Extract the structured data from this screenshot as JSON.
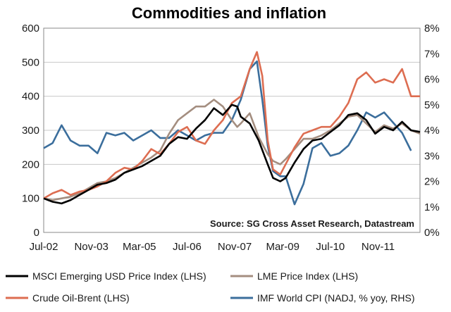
{
  "chart_data": {
    "type": "line",
    "title": "Commodities and inflation",
    "source_note": "Source: SG Cross Asset Research, Datastream",
    "left_axis": {
      "min": 0,
      "max": 600,
      "step": 100,
      "ticks": [
        "0",
        "100",
        "200",
        "300",
        "400",
        "500",
        "600"
      ]
    },
    "right_axis": {
      "min": 0,
      "max": 8,
      "step": 1,
      "ticks": [
        "0%",
        "1%",
        "2%",
        "3%",
        "4%",
        "5%",
        "6%",
        "7%",
        "8%"
      ]
    },
    "x_axis": {
      "start": 2002.5,
      "end": 2013.0,
      "ticks": [
        {
          "label": "Jul-02",
          "x": 2002.5
        },
        {
          "label": "Nov-03",
          "x": 2003.83
        },
        {
          "label": "Mar-05",
          "x": 2005.17
        },
        {
          "label": "Jul-06",
          "x": 2006.5
        },
        {
          "label": "Nov-07",
          "x": 2007.83
        },
        {
          "label": "Mar-09",
          "x": 2009.17
        },
        {
          "label": "Jul-10",
          "x": 2010.5
        },
        {
          "label": "Nov-11",
          "x": 2011.83
        }
      ]
    },
    "series": [
      {
        "name": "MSCI Emerging USD Price Index (LHS)",
        "axis": "left",
        "color": "#000000",
        "x": [
          2002.5,
          2002.75,
          2003.0,
          2003.25,
          2003.5,
          2003.75,
          2004.0,
          2004.25,
          2004.5,
          2004.75,
          2005.0,
          2005.25,
          2005.5,
          2005.75,
          2006.0,
          2006.25,
          2006.5,
          2006.75,
          2007.0,
          2007.25,
          2007.5,
          2007.75,
          2007.9,
          2008.0,
          2008.25,
          2008.5,
          2008.75,
          2008.9,
          2009.1,
          2009.25,
          2009.5,
          2009.75,
          2010.0,
          2010.25,
          2010.5,
          2010.75,
          2011.0,
          2011.25,
          2011.5,
          2011.75,
          2012.0,
          2012.25,
          2012.5,
          2012.75,
          2013.0
        ],
        "y": [
          100,
          90,
          85,
          95,
          110,
          125,
          140,
          145,
          155,
          175,
          185,
          195,
          210,
          225,
          260,
          280,
          275,
          305,
          330,
          365,
          345,
          375,
          370,
          340,
          320,
          270,
          200,
          160,
          150,
          160,
          205,
          245,
          270,
          275,
          295,
          315,
          345,
          350,
          330,
          290,
          310,
          300,
          325,
          300,
          295
        ]
      },
      {
        "name": "LME Price Index (LHS)",
        "axis": "left",
        "color": "#a48e80",
        "x": [
          2002.5,
          2002.75,
          2003.0,
          2003.25,
          2003.5,
          2003.75,
          2004.0,
          2004.25,
          2004.5,
          2004.75,
          2005.0,
          2005.25,
          2005.5,
          2005.75,
          2006.0,
          2006.25,
          2006.5,
          2006.75,
          2007.0,
          2007.25,
          2007.5,
          2007.75,
          2007.9,
          2008.0,
          2008.25,
          2008.5,
          2008.75,
          2008.9,
          2009.1,
          2009.25,
          2009.5,
          2009.75,
          2010.0,
          2010.25,
          2010.5,
          2010.75,
          2011.0,
          2011.25,
          2011.5,
          2011.75,
          2012.0,
          2012.25,
          2012.5,
          2012.75,
          2013.0
        ],
        "y": [
          100,
          95,
          100,
          105,
          115,
          130,
          145,
          150,
          160,
          175,
          190,
          205,
          220,
          240,
          290,
          330,
          350,
          370,
          370,
          390,
          370,
          330,
          310,
          320,
          350,
          280,
          230,
          210,
          200,
          215,
          245,
          275,
          275,
          285,
          300,
          320,
          340,
          345,
          320,
          295,
          315,
          305,
          320,
          300,
          290
        ]
      },
      {
        "name": "Crude Oil-Brent (LHS)",
        "axis": "left",
        "color": "#dd6d51",
        "x": [
          2002.5,
          2002.75,
          2003.0,
          2003.25,
          2003.5,
          2003.75,
          2004.0,
          2004.25,
          2004.5,
          2004.75,
          2005.0,
          2005.25,
          2005.5,
          2005.75,
          2006.0,
          2006.25,
          2006.5,
          2006.75,
          2007.0,
          2007.25,
          2007.5,
          2007.75,
          2008.0,
          2008.25,
          2008.45,
          2008.6,
          2008.75,
          2008.9,
          2009.1,
          2009.25,
          2009.5,
          2009.75,
          2010.0,
          2010.25,
          2010.5,
          2010.75,
          2011.0,
          2011.25,
          2011.5,
          2011.75,
          2012.0,
          2012.25,
          2012.5,
          2012.75,
          2013.0
        ],
        "y": [
          100,
          115,
          125,
          110,
          120,
          125,
          135,
          150,
          175,
          190,
          185,
          210,
          245,
          230,
          260,
          295,
          310,
          270,
          260,
          300,
          330,
          380,
          400,
          480,
          530,
          460,
          270,
          185,
          170,
          200,
          250,
          290,
          300,
          310,
          310,
          340,
          380,
          450,
          470,
          440,
          450,
          440,
          480,
          400,
          400
        ]
      },
      {
        "name": "IMF World CPI (NADJ, % yoy, RHS)",
        "axis": "right",
        "color": "#3b6e9c",
        "x": [
          2002.5,
          2002.75,
          2003.0,
          2003.25,
          2003.5,
          2003.75,
          2004.0,
          2004.25,
          2004.5,
          2004.75,
          2005.0,
          2005.25,
          2005.5,
          2005.75,
          2006.0,
          2006.25,
          2006.5,
          2006.75,
          2007.0,
          2007.25,
          2007.5,
          2007.75,
          2008.0,
          2008.25,
          2008.45,
          2008.6,
          2008.75,
          2008.9,
          2009.1,
          2009.25,
          2009.5,
          2009.75,
          2010.0,
          2010.25,
          2010.5,
          2010.75,
          2011.0,
          2011.25,
          2011.5,
          2011.75,
          2012.0,
          2012.25,
          2012.5,
          2012.75
        ],
        "y": [
          3.3,
          3.5,
          4.2,
          3.6,
          3.4,
          3.4,
          3.1,
          3.9,
          3.8,
          3.9,
          3.6,
          3.8,
          4.0,
          3.7,
          3.7,
          4.0,
          3.8,
          3.6,
          3.8,
          3.9,
          3.9,
          4.4,
          5.2,
          6.4,
          6.7,
          5.2,
          3.4,
          2.4,
          2.2,
          2.2,
          1.1,
          1.9,
          3.3,
          3.5,
          3.0,
          3.1,
          3.4,
          4.0,
          4.7,
          4.5,
          4.7,
          4.3,
          3.9,
          3.2
        ]
      }
    ],
    "legend_position": "bottom"
  }
}
